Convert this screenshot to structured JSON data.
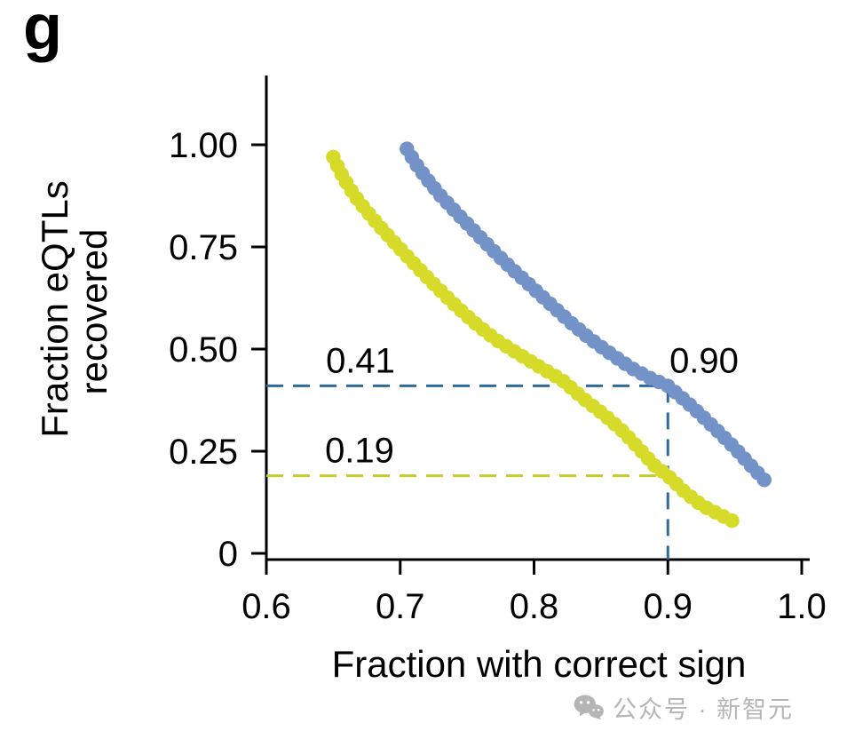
{
  "panel_label": "g",
  "watermark": {
    "text": "公众号 · 新智元",
    "icon": "wechat-icon",
    "color": "#b5b5b5"
  },
  "chart_data": {
    "type": "scatter",
    "title": "",
    "xlabel": "Fraction with correct sign",
    "ylabel_lines": [
      "Fraction eQTLs",
      "recovered"
    ],
    "xlim": [
      0.6,
      1.0
    ],
    "ylim": [
      0,
      1.0
    ],
    "x_ticks": [
      0.6,
      0.7,
      0.8,
      0.9,
      1.0
    ],
    "x_tick_labels": [
      "0.6",
      "0.7",
      "0.8",
      "0.9",
      "1.0"
    ],
    "y_ticks": [
      0,
      0.25,
      0.5,
      0.75,
      1.0
    ],
    "y_tick_labels": [
      "0",
      "0.25",
      "0.50",
      "0.75",
      "1.00"
    ],
    "grid": false,
    "legend": "none",
    "axis_color": "#000000",
    "series": [
      {
        "name": "blue",
        "color": "#7292c8",
        "marker": "circle",
        "n_dots": 52,
        "points": [
          [
            0.705,
            0.99
          ],
          [
            0.712,
            0.952
          ],
          [
            0.72,
            0.916
          ],
          [
            0.73,
            0.876
          ],
          [
            0.742,
            0.834
          ],
          [
            0.755,
            0.79
          ],
          [
            0.768,
            0.746
          ],
          [
            0.782,
            0.701
          ],
          [
            0.797,
            0.656
          ],
          [
            0.812,
            0.611
          ],
          [
            0.827,
            0.566
          ],
          [
            0.842,
            0.525
          ],
          [
            0.858,
            0.487
          ],
          [
            0.872,
            0.455
          ],
          [
            0.886,
            0.43
          ],
          [
            0.9,
            0.41
          ],
          [
            0.913,
            0.374
          ],
          [
            0.926,
            0.335
          ],
          [
            0.938,
            0.297
          ],
          [
            0.95,
            0.258
          ],
          [
            0.96,
            0.222
          ],
          [
            0.968,
            0.194
          ],
          [
            0.972,
            0.18
          ]
        ]
      },
      {
        "name": "yellow-green",
        "color": "#d6db2a",
        "marker": "circle",
        "n_dots": 58,
        "points": [
          [
            0.65,
            0.97
          ],
          [
            0.655,
            0.935
          ],
          [
            0.661,
            0.9
          ],
          [
            0.669,
            0.862
          ],
          [
            0.679,
            0.822
          ],
          [
            0.69,
            0.781
          ],
          [
            0.701,
            0.742
          ],
          [
            0.713,
            0.7
          ],
          [
            0.726,
            0.656
          ],
          [
            0.74,
            0.611
          ],
          [
            0.755,
            0.566
          ],
          [
            0.771,
            0.524
          ],
          [
            0.788,
            0.489
          ],
          [
            0.805,
            0.455
          ],
          [
            0.821,
            0.424
          ],
          [
            0.838,
            0.376
          ],
          [
            0.852,
            0.34
          ],
          [
            0.867,
            0.297
          ],
          [
            0.88,
            0.251
          ],
          [
            0.89,
            0.215
          ],
          [
            0.9,
            0.19
          ],
          [
            0.912,
            0.152
          ],
          [
            0.925,
            0.118
          ],
          [
            0.938,
            0.096
          ],
          [
            0.948,
            0.08
          ]
        ]
      }
    ],
    "dashed_guides": {
      "x_value": 0.9,
      "blue_y_value": 0.41,
      "yellow_y_value": 0.19,
      "blue_color": "#2e6b9a",
      "yellow_color": "#c6cc29"
    },
    "annotation_labels": {
      "blue_recall": "0.41",
      "yellow_recall": "0.19",
      "correct_sign": "0.90"
    }
  }
}
